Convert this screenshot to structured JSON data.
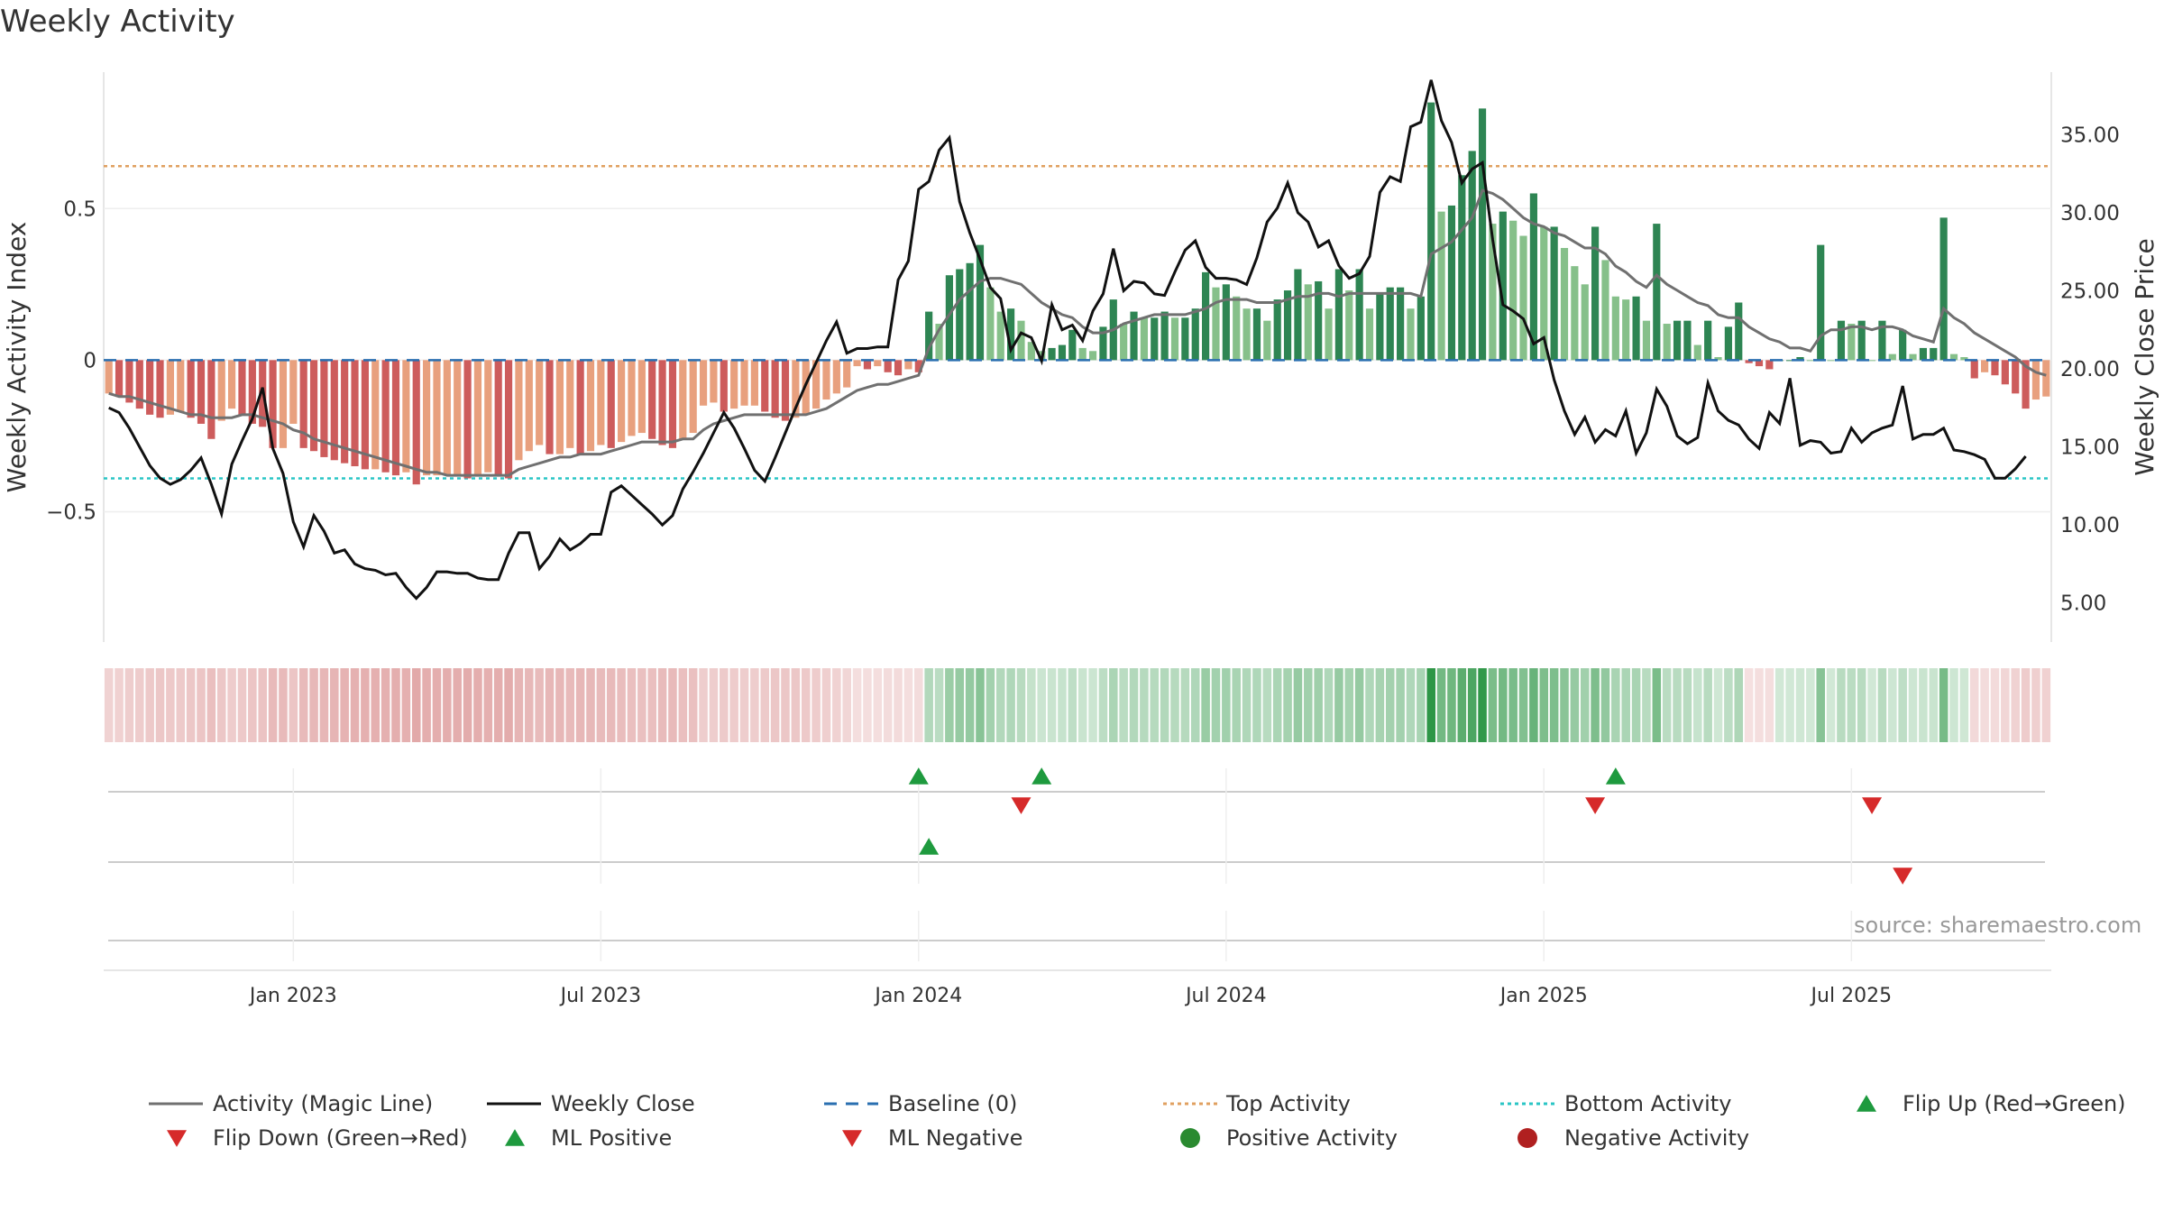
{
  "chart_data": {
    "type": "bar",
    "title": "Weekly Activity",
    "ylabel_left": "Weekly Activity Index",
    "ylabel_right": "Weekly Close Price",
    "source": "source: sharemaestro.com",
    "ylim_left": [
      -0.93,
      0.95
    ],
    "ylim_right": [
      2.5,
      39
    ],
    "yticks_left": [
      {
        "value": 0.5,
        "label": "0.5"
      },
      {
        "value": 0,
        "label": "0"
      },
      {
        "value": -0.5,
        "label": "−0.5"
      }
    ],
    "yticks_right": [
      {
        "value": 35,
        "label": "35.00"
      },
      {
        "value": 30,
        "label": "30.00"
      },
      {
        "value": 25,
        "label": "25.00"
      },
      {
        "value": 20,
        "label": "20.00"
      },
      {
        "value": 15,
        "label": "15.00"
      },
      {
        "value": 10,
        "label": "10.00"
      },
      {
        "value": 5,
        "label": "5.00"
      }
    ],
    "xticks": [
      {
        "week": 18,
        "label": "Jan 2023"
      },
      {
        "week": 48,
        "label": "Jul 2023"
      },
      {
        "week": 79,
        "label": "Jan 2024"
      },
      {
        "week": 109,
        "label": "Jul 2024"
      },
      {
        "week": 140,
        "label": "Jan 2025"
      },
      {
        "week": 170,
        "label": "Jul 2025"
      }
    ],
    "top_activity": 0.64,
    "bottom_activity": -0.39,
    "first_week": "2022-09-05",
    "activity": [
      -0.11,
      -0.12,
      -0.14,
      -0.16,
      -0.18,
      -0.19,
      -0.18,
      -0.17,
      -0.19,
      -0.21,
      -0.26,
      -0.2,
      -0.16,
      -0.18,
      -0.21,
      -0.22,
      -0.29,
      -0.29,
      -0.21,
      -0.29,
      -0.3,
      -0.32,
      -0.33,
      -0.34,
      -0.35,
      -0.36,
      -0.36,
      -0.37,
      -0.38,
      -0.37,
      -0.41,
      -0.38,
      -0.38,
      -0.38,
      -0.38,
      -0.39,
      -0.38,
      -0.37,
      -0.38,
      -0.39,
      -0.33,
      -0.3,
      -0.28,
      -0.31,
      -0.31,
      -0.29,
      -0.31,
      -0.3,
      -0.28,
      -0.29,
      -0.27,
      -0.25,
      -0.24,
      -0.26,
      -0.28,
      -0.29,
      -0.26,
      -0.24,
      -0.15,
      -0.14,
      -0.17,
      -0.16,
      -0.15,
      -0.15,
      -0.17,
      -0.19,
      -0.2,
      -0.19,
      -0.18,
      -0.16,
      -0.13,
      -0.11,
      -0.09,
      -0.02,
      -0.03,
      -0.02,
      -0.04,
      -0.05,
      -0.03,
      -0.04,
      0.16,
      0.12,
      0.28,
      0.3,
      0.32,
      0.38,
      0.24,
      0.16,
      0.17,
      0.13,
      0.06,
      0.03,
      0.04,
      0.05,
      0.1,
      0.04,
      0.03,
      0.11,
      0.2,
      0.12,
      0.16,
      0.14,
      0.14,
      0.16,
      0.14,
      0.14,
      0.17,
      0.29,
      0.24,
      0.25,
      0.21,
      0.17,
      0.17,
      0.13,
      0.2,
      0.23,
      0.3,
      0.25,
      0.26,
      0.17,
      0.3,
      0.23,
      0.3,
      0.17,
      0.22,
      0.24,
      0.24,
      0.17,
      0.21,
      0.85,
      0.49,
      0.51,
      0.61,
      0.69,
      0.83,
      0.45,
      0.49,
      0.46,
      0.41,
      0.55,
      0.44,
      0.44,
      0.37,
      0.31,
      0.25,
      0.44,
      0.33,
      0.21,
      0.2,
      0.21,
      0.13,
      0.45,
      0.12,
      0.13,
      0.13,
      0.05,
      0.13,
      0.01,
      0.11,
      0.19,
      -0.01,
      -0.02,
      -0.03,
      0.0,
      0.0,
      0.01,
      0.0,
      0.38,
      0.0,
      0.13,
      0.12,
      0.13,
      0.0,
      0.13,
      0.02,
      0.1,
      0.02,
      0.04,
      0.04,
      0.47,
      0.02,
      0.01,
      -0.06,
      -0.04,
      -0.05,
      -0.08,
      -0.11,
      -0.16,
      -0.13,
      -0.12
    ],
    "magic_line": [
      -0.11,
      -0.12,
      -0.12,
      -0.13,
      -0.14,
      -0.15,
      -0.16,
      -0.17,
      -0.18,
      -0.18,
      -0.19,
      -0.19,
      -0.19,
      -0.18,
      -0.18,
      -0.19,
      -0.2,
      -0.21,
      -0.23,
      -0.24,
      -0.26,
      -0.27,
      -0.28,
      -0.29,
      -0.3,
      -0.31,
      -0.32,
      -0.33,
      -0.34,
      -0.35,
      -0.36,
      -0.37,
      -0.37,
      -0.38,
      -0.38,
      -0.38,
      -0.38,
      -0.38,
      -0.38,
      -0.38,
      -0.36,
      -0.35,
      -0.34,
      -0.33,
      -0.32,
      -0.32,
      -0.31,
      -0.31,
      -0.31,
      -0.3,
      -0.29,
      -0.28,
      -0.27,
      -0.27,
      -0.27,
      -0.27,
      -0.26,
      -0.26,
      -0.23,
      -0.21,
      -0.2,
      -0.19,
      -0.18,
      -0.18,
      -0.18,
      -0.18,
      -0.18,
      -0.18,
      -0.18,
      -0.17,
      -0.16,
      -0.14,
      -0.12,
      -0.1,
      -0.09,
      -0.08,
      -0.08,
      -0.07,
      -0.06,
      -0.05,
      0.04,
      0.1,
      0.15,
      0.2,
      0.23,
      0.26,
      0.27,
      0.27,
      0.26,
      0.25,
      0.22,
      0.19,
      0.17,
      0.15,
      0.14,
      0.11,
      0.09,
      0.09,
      0.1,
      0.12,
      0.13,
      0.14,
      0.15,
      0.15,
      0.15,
      0.15,
      0.16,
      0.17,
      0.19,
      0.2,
      0.2,
      0.2,
      0.19,
      0.19,
      0.19,
      0.2,
      0.21,
      0.21,
      0.22,
      0.22,
      0.21,
      0.22,
      0.22,
      0.22,
      0.22,
      0.22,
      0.22,
      0.22,
      0.21,
      0.35,
      0.37,
      0.39,
      0.43,
      0.47,
      0.56,
      0.55,
      0.53,
      0.5,
      0.47,
      0.45,
      0.44,
      0.42,
      0.41,
      0.39,
      0.37,
      0.37,
      0.35,
      0.31,
      0.29,
      0.26,
      0.24,
      0.28,
      0.25,
      0.23,
      0.21,
      0.19,
      0.18,
      0.15,
      0.14,
      0.14,
      0.11,
      0.09,
      0.07,
      0.06,
      0.04,
      0.04,
      0.03,
      0.08,
      0.1,
      0.1,
      0.11,
      0.11,
      0.1,
      0.11,
      0.11,
      0.1,
      0.08,
      0.07,
      0.06,
      0.17,
      0.14,
      0.12,
      0.09,
      0.07,
      0.05,
      0.03,
      0.01,
      -0.02,
      -0.04,
      -0.05
    ],
    "weekly_close": [
      17.5,
      17.2,
      16.2,
      15.0,
      13.8,
      13.0,
      12.6,
      12.9,
      13.5,
      14.3,
      12.6,
      10.7,
      13.9,
      15.4,
      16.8,
      18.8,
      14.9,
      13.3,
      10.2,
      8.6,
      10.6,
      9.6,
      8.2,
      8.4,
      7.5,
      7.2,
      7.1,
      6.8,
      6.9,
      6.0,
      5.3,
      6.0,
      7.0,
      7.0,
      6.9,
      6.9,
      6.6,
      6.5,
      6.5,
      8.2,
      9.5,
      9.5,
      7.2,
      8.0,
      9.1,
      8.4,
      8.8,
      9.4,
      9.4,
      12.1,
      12.5,
      11.9,
      11.3,
      10.7,
      10.0,
      10.6,
      12.3,
      13.4,
      14.6,
      15.9,
      17.2,
      16.2,
      14.9,
      13.5,
      12.8,
      14.3,
      15.9,
      17.5,
      19.0,
      20.4,
      21.8,
      23.0,
      21.0,
      21.3,
      21.3,
      21.4,
      21.4,
      25.7,
      26.9,
      31.5,
      32.0,
      34.0,
      34.8,
      30.7,
      28.7,
      27.0,
      25.2,
      24.5,
      21.2,
      22.3,
      22.0,
      20.5,
      24.1,
      22.5,
      22.8,
      21.8,
      23.7,
      24.8,
      27.7,
      25.0,
      25.6,
      25.5,
      24.8,
      24.7,
      26.2,
      27.6,
      28.2,
      26.5,
      25.8,
      25.8,
      25.7,
      25.4,
      27.1,
      29.4,
      30.3,
      31.9,
      30.0,
      29.4,
      27.8,
      28.2,
      26.6,
      25.8,
      26.1,
      27.2,
      31.3,
      32.3,
      32.0,
      35.5,
      35.8,
      38.5,
      35.9,
      34.5,
      31.9,
      32.8,
      33.2,
      28.3,
      24.1,
      23.7,
      23.2,
      21.6,
      22.0,
      19.3,
      17.3,
      15.8,
      16.9,
      15.3,
      16.1,
      15.7,
      17.3,
      14.6,
      15.9,
      18.7,
      17.6,
      15.7,
      15.2,
      15.6,
      19.1,
      17.3,
      16.7,
      16.4,
      15.5,
      14.9,
      17.2,
      16.5,
      19.4,
      15.1,
      15.4,
      15.3,
      14.6,
      14.7,
      16.2,
      15.3,
      15.9,
      16.2,
      16.4,
      18.9,
      15.5,
      15.8,
      15.8,
      16.2,
      14.8,
      14.7,
      14.5,
      14.2,
      13.0,
      13.0,
      13.6,
      14.4
    ]
  },
  "layout_bounds": {
    "bar_band": [
      78,
      1476
    ],
    "heat_band": [
      -0.36,
      0.85
    ],
    "strip_rows": 3
  },
  "signals": {
    "flip_up": [
      79,
      91,
      147
    ],
    "flip_down": [
      89,
      145,
      172
    ],
    "ml_positive": [
      80
    ],
    "ml_negative": [
      175
    ]
  },
  "colors": {
    "pos_strong": "#2e8553",
    "pos_light": "#86c08a",
    "neg_strong": "#cd5c5c",
    "neg_light": "#e8a07e",
    "magic_line": "#707070",
    "close_line": "#111111",
    "baseline": "#2a6fb0",
    "top_line": "#e0a060",
    "bottom_line": "#2ac5c5",
    "up_marker": "#1e9a3e",
    "down_marker": "#d62a2a"
  },
  "legend": {
    "magic_line": "Activity (Magic Line)",
    "weekly_close": "Weekly Close",
    "baseline": "Baseline (0)",
    "top_activity": "Top Activity",
    "bottom_activity": "Bottom Activity",
    "flip_up": "Flip Up (Red→Green)",
    "flip_down": "Flip Down (Green→Red)",
    "ml_positive": "ML Positive",
    "ml_negative": "ML Negative",
    "positive_activity": "Positive Activity",
    "negative_activity": "Negative Activity"
  }
}
